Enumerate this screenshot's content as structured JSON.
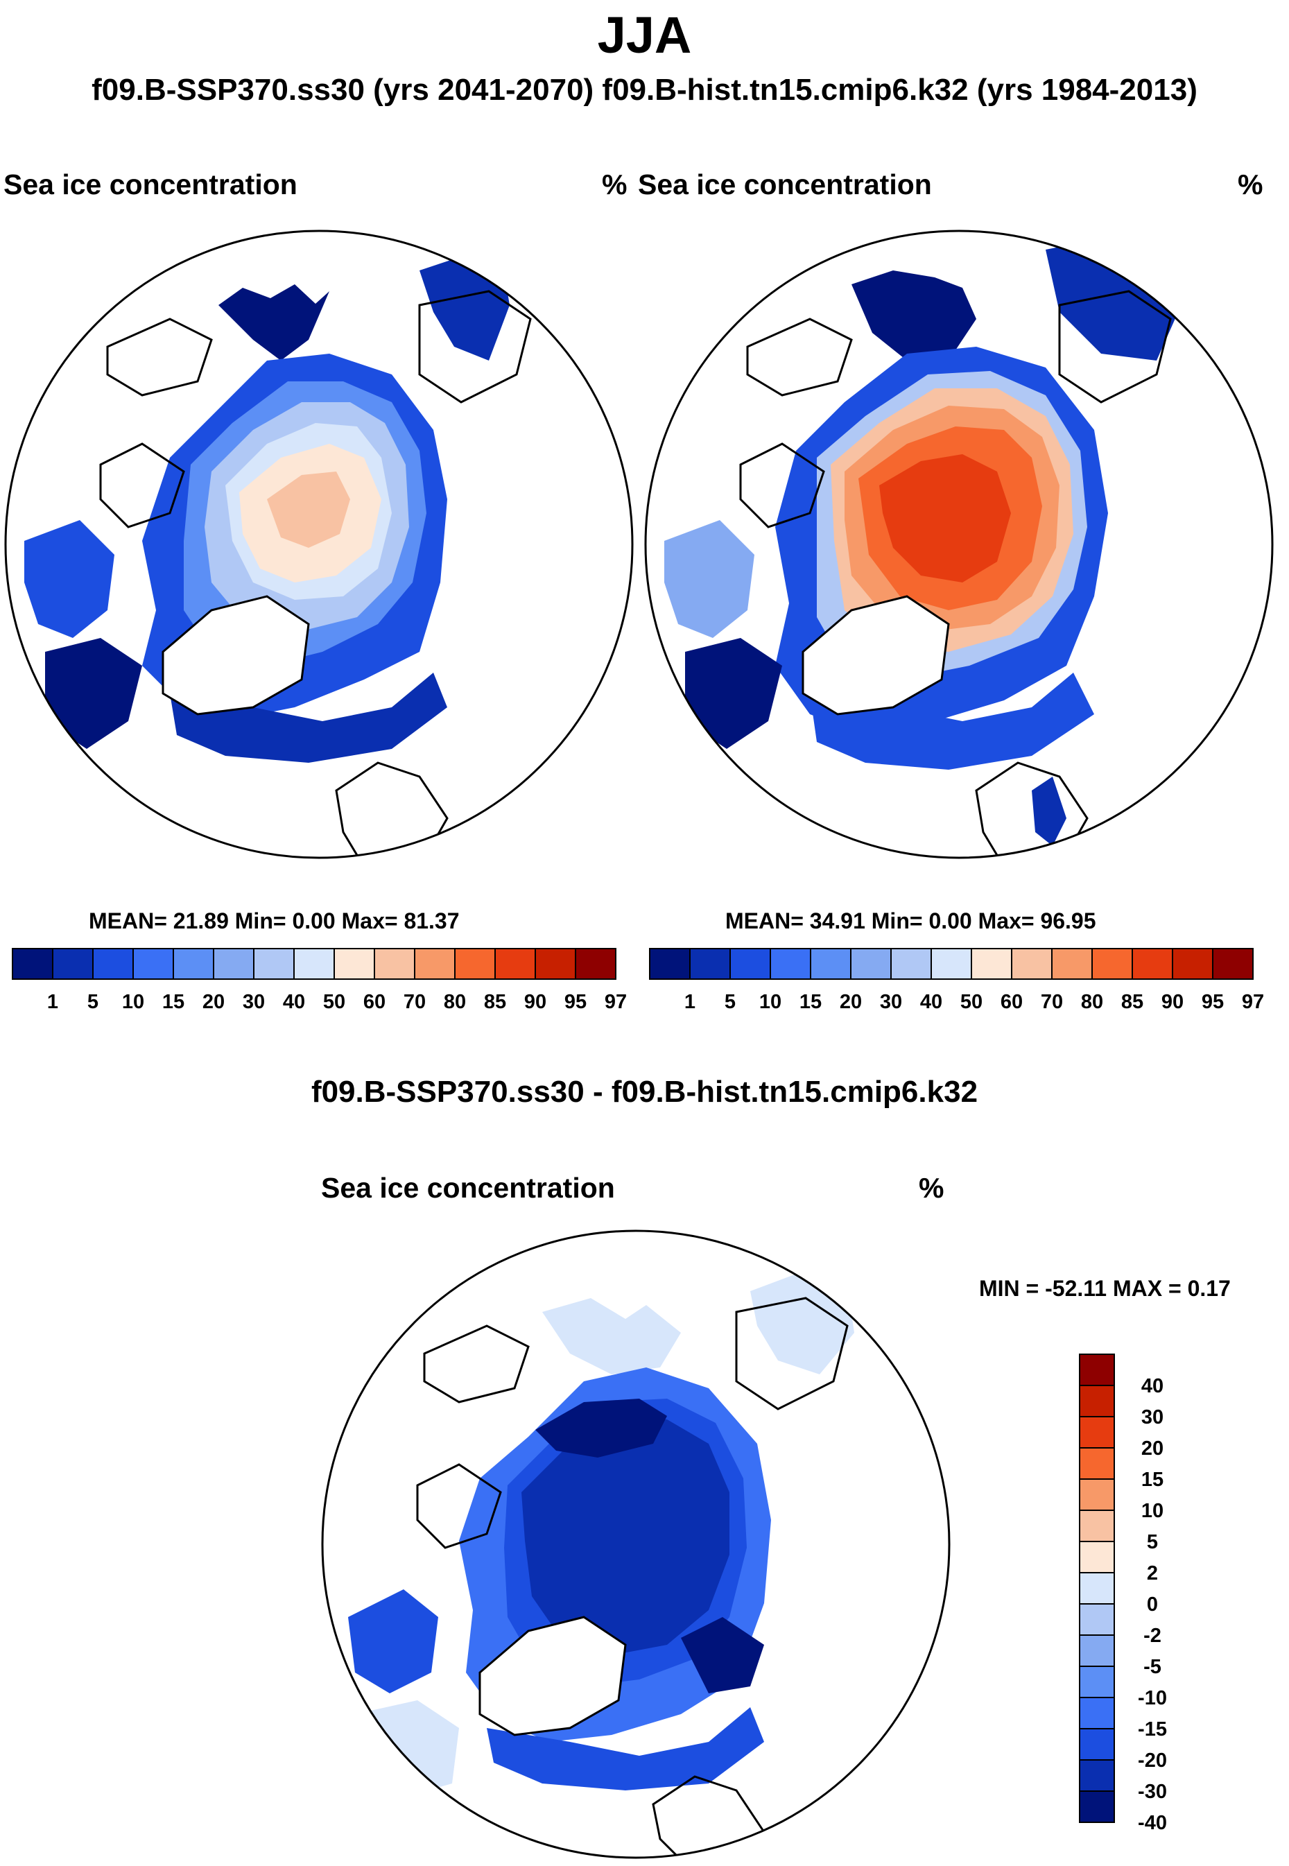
{
  "season": "JJA",
  "subtitle": "f09.B-SSP370.ss30 (yrs 2041-2070)  f09.B-hist.tn15.cmip6.k32 (yrs 1984-2013)",
  "palettes": {
    "abs": [
      "#00137a",
      "#0a2fb0",
      "#1c4ee0",
      "#3a70f5",
      "#5c8ff5",
      "#85aaf2",
      "#b0c8f5",
      "#d7e6fb",
      "#fde7d6",
      "#f8c2a3",
      "#f79968",
      "#f6672e",
      "#e63c10",
      "#c72000",
      "#8e0000"
    ],
    "diff": [
      "#00137a",
      "#0a2fb0",
      "#1c4ee0",
      "#3a70f5",
      "#5c8ff5",
      "#85aaf2",
      "#b0c8f5",
      "#d7e6fb",
      "#fde7d6",
      "#f8c2a3",
      "#f79968",
      "#f6672e",
      "#e63c10",
      "#c72000",
      "#8e0000"
    ]
  },
  "panels": [
    {
      "id": "future",
      "title": "Sea ice concentration",
      "units": "%",
      "stats": "MEAN=  21.89  Min=   0.00  Max=  81.37",
      "mean": 21.89,
      "min": 0.0,
      "max": 81.37,
      "colorbar_levels": [
        "1",
        "5",
        "10",
        "15",
        "20",
        "30",
        "40",
        "50",
        "60",
        "70",
        "80",
        "85",
        "90",
        "95",
        "97"
      ]
    },
    {
      "id": "historical",
      "title": "Sea ice concentration",
      "units": "%",
      "stats": "MEAN=  34.91  Min=   0.00  Max=  96.95",
      "mean": 34.91,
      "min": 0.0,
      "max": 96.95,
      "colorbar_levels": [
        "1",
        "5",
        "10",
        "15",
        "20",
        "30",
        "40",
        "50",
        "60",
        "70",
        "80",
        "85",
        "90",
        "95",
        "97"
      ]
    }
  ],
  "difference": {
    "header": "f09.B-SSP370.ss30 - f09.B-hist.tn15.cmip6.k32",
    "title": "Sea ice concentration",
    "units": "%",
    "stats": "MIN = -52.11 MAX =   0.17",
    "min": -52.11,
    "max": 0.17,
    "colorbar_levels": [
      "40",
      "30",
      "20",
      "15",
      "10",
      "5",
      "2",
      "0",
      "-2",
      "-5",
      "-10",
      "-15",
      "-20",
      "-30",
      "-40"
    ]
  },
  "chart_data": [
    {
      "type": "heatmap",
      "title": "Sea ice concentration (f09.B-SSP370.ss30, yrs 2041-2070, JJA)",
      "units": "%",
      "projection": "north polar stereographic",
      "levels": [
        1,
        5,
        10,
        15,
        20,
        30,
        40,
        50,
        60,
        70,
        80,
        85,
        90,
        95,
        97
      ],
      "mean": 21.89,
      "min": 0.0,
      "max": 81.37
    },
    {
      "type": "heatmap",
      "title": "Sea ice concentration (f09.B-hist.tn15.cmip6.k32, yrs 1984-2013, JJA)",
      "units": "%",
      "projection": "north polar stereographic",
      "levels": [
        1,
        5,
        10,
        15,
        20,
        30,
        40,
        50,
        60,
        70,
        80,
        85,
        90,
        95,
        97
      ],
      "mean": 34.91,
      "min": 0.0,
      "max": 96.95
    },
    {
      "type": "heatmap",
      "title": "Sea ice concentration difference (f09.B-SSP370.ss30 - f09.B-hist.tn15.cmip6.k32)",
      "units": "%",
      "projection": "north polar stereographic",
      "levels": [
        -40,
        -30,
        -20,
        -15,
        -10,
        -5,
        -2,
        0,
        2,
        5,
        10,
        15,
        20,
        30,
        40
      ],
      "min": -52.11,
      "max": 0.17
    }
  ]
}
